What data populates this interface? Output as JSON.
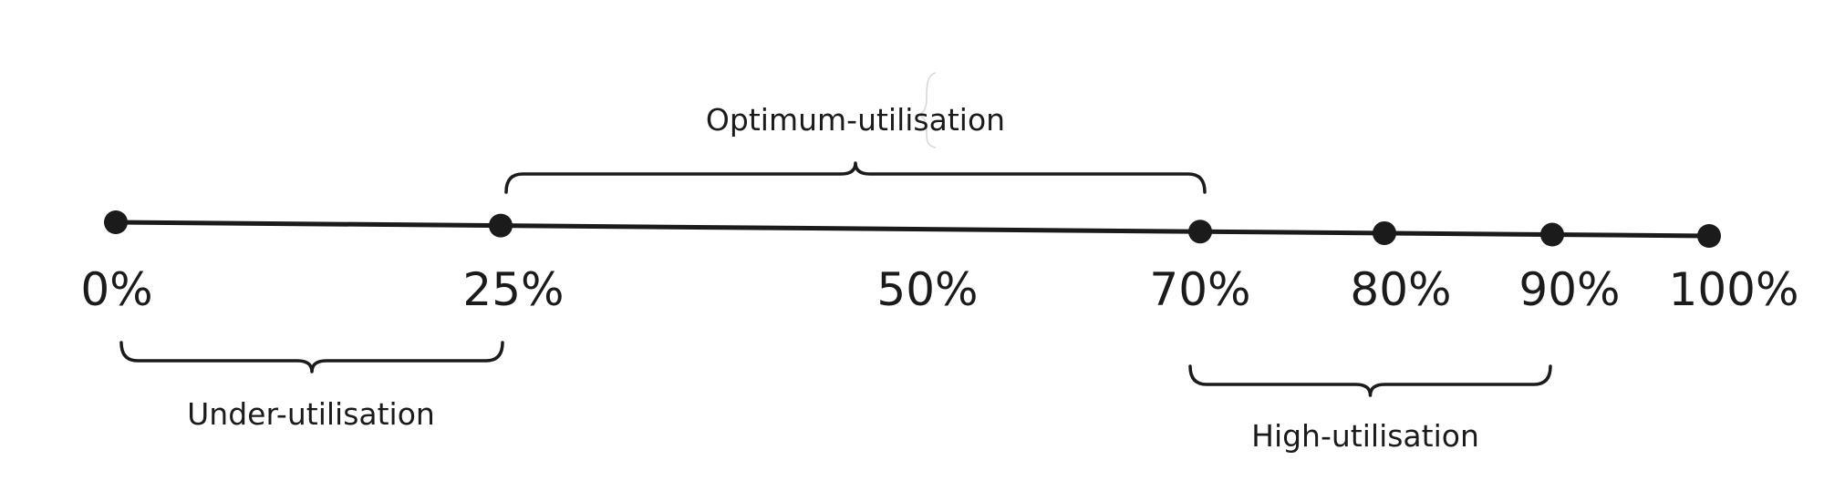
{
  "scale": {
    "points": [
      {
        "label": "0%",
        "value": 0,
        "marker": true
      },
      {
        "label": "25%",
        "value": 25,
        "marker": true
      },
      {
        "label": "50%",
        "value": 50,
        "marker": false
      },
      {
        "label": "70%",
        "value": 70,
        "marker": true
      },
      {
        "label": "80%",
        "value": 80,
        "marker": true
      },
      {
        "label": "90%",
        "value": 90,
        "marker": true
      },
      {
        "label": "100%",
        "value": 100,
        "marker": true
      }
    ]
  },
  "ranges": [
    {
      "label": "Under-utilisation",
      "from": 0,
      "to": 25,
      "side": "below"
    },
    {
      "label": "Optimum-utilisation",
      "from": 25,
      "to": 70,
      "side": "above"
    },
    {
      "label": "High-utilisation",
      "from": 70,
      "to": 90,
      "side": "below"
    }
  ],
  "colors": {
    "ink": "#1b1b1b",
    "background": "#ffffff"
  }
}
